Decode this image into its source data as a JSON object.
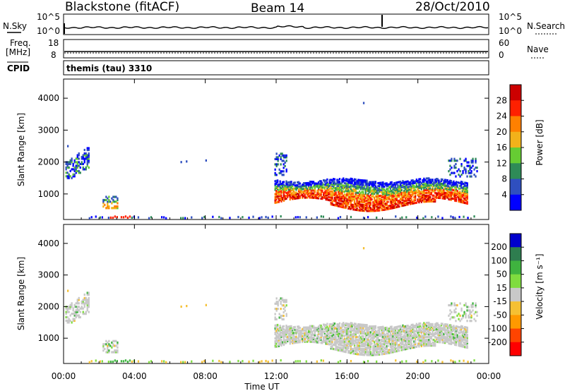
{
  "header": {
    "station": "Blackstone (fitACF)",
    "beam": "Beam 14",
    "date": "28/Oct/2010"
  },
  "noise_panel": {
    "left_label": "N.Sky",
    "right_label": "N.Search",
    "tick_top": "10^5",
    "tick_bottom": "10^0"
  },
  "freq_panel": {
    "left_label_1": "Freq.",
    "left_label_2": "[MHz]",
    "left_tick_top": "18",
    "left_tick_bottom": "8",
    "right_label": "Nave",
    "right_tick_top": "60",
    "right_tick_bottom": "0"
  },
  "cpid_panel": {
    "label": "CPID",
    "text": "themis (tau) 3310"
  },
  "x_axis": {
    "label": "Time UT",
    "ticks": [
      "00:00",
      "04:00",
      "08:00",
      "12:00",
      "16:00",
      "20:00",
      "00:00"
    ]
  },
  "colors": {
    "power": [
      "#0000ff",
      "#2f4fbf",
      "#2e8b57",
      "#66cc33",
      "#f2b21a",
      "#ff8000",
      "#ff2000",
      "#cc0000"
    ],
    "velocity": [
      "#0000cc",
      "#2e7d4f",
      "#3fb33f",
      "#7fdc3f",
      "#c8c8c8",
      "#f5c033",
      "#ff9900",
      "#ff4400",
      "#ff0000"
    ]
  },
  "chart_data": [
    {
      "type": "heatmap",
      "name": "power",
      "ylabel": "Slant Range [km]",
      "y_ticks": [
        "1000",
        "2000",
        "3000",
        "4000"
      ],
      "ylim": [
        200,
        4600
      ],
      "xlim_hours": [
        0,
        24
      ],
      "colorbar_label": "Power [dB]",
      "colorbar_ticks": [
        "4",
        "8",
        "12",
        "16",
        "20",
        "24",
        "28"
      ],
      "colorbar_range": [
        0,
        32
      ]
    },
    {
      "type": "heatmap",
      "name": "velocity",
      "ylabel": "Slant Range [km]",
      "y_ticks": [
        "1000",
        "2000",
        "3000",
        "4000"
      ],
      "ylim": [
        200,
        4600
      ],
      "xlim_hours": [
        0,
        24
      ],
      "colorbar_label": "Velocity [m s⁻¹]",
      "colorbar_ticks": [
        "200",
        "100",
        "50",
        "15",
        "-15",
        "-50",
        "-100",
        "-200"
      ]
    }
  ]
}
